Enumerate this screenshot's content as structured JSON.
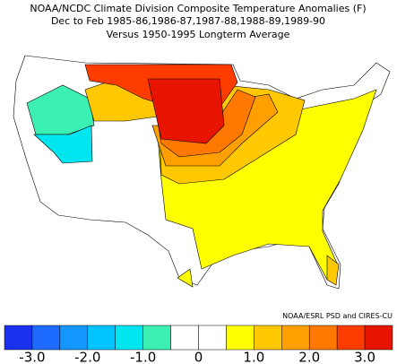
{
  "header": {
    "title": "NOAA/NCDC Climate Division Composite Temperature Anomalies (F)",
    "subtitle": "Dec to Feb  1985-86,1986-87,1987-88,1988-89,1989-90",
    "baseline": "Versus 1950-1995 Longterm Average"
  },
  "credit": "NOAA/ESRL PSD and CIRES-CU",
  "colorbar": {
    "bins": [
      -3.5,
      -3.0,
      -2.5,
      -2.0,
      -1.5,
      -1.0,
      -0.5,
      0.0,
      0.5,
      1.0,
      1.5,
      2.0,
      2.5,
      3.0,
      3.5
    ],
    "colors": [
      "#1a32f0",
      "#1e6cff",
      "#1496ff",
      "#00c4ff",
      "#00e6f0",
      "#3cf0b4",
      "#ffffff",
      "#ffffff",
      "#ffff00",
      "#ffc800",
      "#ffa000",
      "#ff7800",
      "#ff3c00",
      "#e61400"
    ],
    "ticks": [
      {
        "value": -3.0,
        "label": "-3.0"
      },
      {
        "value": -2.0,
        "label": "-2.0"
      },
      {
        "value": -1.0,
        "label": "-1.0"
      },
      0.0,
      {
        "value": 1.0,
        "label": "1.0"
      },
      {
        "value": 2.0,
        "label": "2.0"
      },
      {
        "value": 3.0,
        "label": "3.0"
      }
    ]
  }
}
